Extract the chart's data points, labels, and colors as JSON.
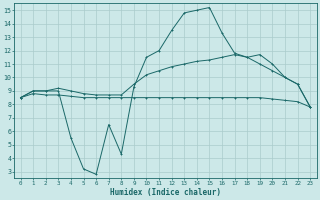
{
  "xlabel": "Humidex (Indice chaleur)",
  "bg_color": "#cce8e8",
  "grid_color": "#aacccc",
  "line_color": "#1a6868",
  "xlim": [
    -0.5,
    23.5
  ],
  "ylim": [
    2.5,
    15.5
  ],
  "xticks": [
    0,
    1,
    2,
    3,
    4,
    5,
    6,
    7,
    8,
    9,
    10,
    11,
    12,
    13,
    14,
    15,
    16,
    17,
    18,
    19,
    20,
    21,
    22,
    23
  ],
  "yticks": [
    3,
    4,
    5,
    6,
    7,
    8,
    9,
    10,
    11,
    12,
    13,
    14,
    15
  ],
  "line1_y": [
    8.5,
    9.0,
    9.0,
    9.0,
    5.5,
    3.2,
    2.8,
    6.5,
    4.3,
    9.3,
    11.5,
    12.0,
    13.5,
    14.8,
    15.0,
    15.2,
    13.3,
    11.8,
    11.5,
    11.7,
    11.0,
    10.0,
    9.5,
    7.8
  ],
  "line2_y": [
    8.5,
    9.0,
    9.0,
    9.2,
    9.0,
    8.8,
    8.7,
    8.7,
    8.7,
    9.5,
    10.2,
    10.5,
    10.8,
    11.0,
    11.2,
    11.3,
    11.5,
    11.7,
    11.5,
    11.0,
    10.5,
    10.0,
    9.5,
    7.8
  ],
  "line3_y": [
    8.5,
    8.8,
    8.7,
    8.7,
    8.6,
    8.5,
    8.5,
    8.5,
    8.5,
    8.5,
    8.5,
    8.5,
    8.5,
    8.5,
    8.5,
    8.5,
    8.5,
    8.5,
    8.5,
    8.5,
    8.4,
    8.3,
    8.2,
    7.8
  ]
}
